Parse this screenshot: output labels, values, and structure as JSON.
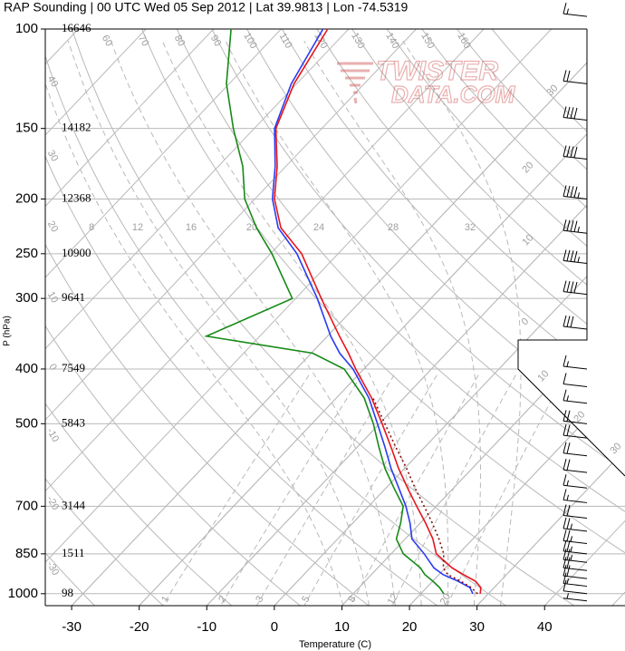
{
  "chart_data": {
    "type": "skewt",
    "title": "RAP Sounding | 00 UTC Wed 05 Sep 2012 | Lat 39.9813 | Lon -74.5319",
    "x_label": "Temperature (C)",
    "y_label": "P (hPa)",
    "log_y": true,
    "grid": true,
    "xlim": [
      -33.9,
      51.9
    ],
    "ylim": [
      100,
      1050
    ],
    "xticks": [
      -30,
      -20,
      -10,
      0,
      10,
      20,
      30,
      40
    ],
    "yticks": [
      100,
      150,
      200,
      250,
      300,
      400,
      500,
      700,
      850,
      1000
    ],
    "heights": [
      16646,
      14182,
      12368,
      10900,
      9641,
      7549,
      5843,
      3144,
      1511,
      98
    ],
    "pressure": [
      1000,
      975,
      950,
      925,
      900,
      850,
      800,
      750,
      700,
      650,
      600,
      550,
      500,
      450,
      400,
      375,
      350,
      300,
      250,
      225,
      200,
      175,
      150,
      125,
      100
    ],
    "series": [
      {
        "color": "#e8141c",
        "style": "solid",
        "values": [
          28.8,
          28.0,
          26.3,
          23.6,
          21.0,
          16.7,
          14.1,
          10.8,
          7.1,
          3.2,
          -0.9,
          -5.0,
          -9.6,
          -14.8,
          -21.2,
          -24.5,
          -28.2,
          -36.2,
          -45.4,
          -52.1,
          -57.1,
          -61.3,
          -66.8,
          -70.4,
          -73.1
        ]
      },
      {
        "color": "#2a3cf0",
        "style": "solid",
        "values": [
          27.7,
          26.4,
          23.7,
          20.6,
          18.3,
          14.9,
          11.0,
          8.5,
          5.5,
          1.9,
          -2.0,
          -5.9,
          -10.3,
          -15.2,
          -21.6,
          -25.8,
          -29.5,
          -36.8,
          -46.1,
          -52.5,
          -57.4,
          -61.6,
          -67.0,
          -70.8,
          -73.8
        ]
      },
      {
        "color": "#168a16",
        "style": "solid",
        "values": [
          23.4,
          21.9,
          20.0,
          17.9,
          16.3,
          11.8,
          8.7,
          7.1,
          5.1,
          1.2,
          -2.9,
          -6.8,
          -10.9,
          -15.9,
          -22.9,
          -29.8,
          -47.9,
          -40.5,
          -49.8,
          -55.7,
          -61.5,
          -66.4,
          -73.1,
          -80.4,
          -87.4
        ]
      },
      {
        "color": "#8b0a0a",
        "style": "dotted",
        "values": [
          28.4,
          26.6,
          24.1,
          21.3,
          19.7,
          17.8,
          15.0,
          11.8,
          8.2,
          4.3,
          0.3,
          -4.3,
          -9.2,
          -14.6,
          null,
          null,
          null,
          null,
          null,
          null,
          null,
          null,
          null,
          null,
          null
        ]
      }
    ],
    "isotherm_labels": [
      {
        "value": -30,
        "label": "30"
      },
      {
        "value": -20,
        "label": "20"
      },
      {
        "value": -10,
        "label": "10"
      },
      0,
      {
        "value": 10,
        "label": "10"
      },
      {
        "value": 20,
        "label": "20"
      },
      {
        "value": 30,
        "label": "30"
      }
    ],
    "dry_adiabats_left": [
      -30,
      -20,
      -10,
      0,
      10,
      20,
      30,
      40
    ],
    "dry_adiabats_top": [
      60,
      70,
      80,
      90,
      100,
      110,
      120,
      130,
      140,
      150,
      160
    ],
    "moist_adiabats": [
      8,
      12,
      16,
      20,
      24,
      28,
      32
    ],
    "mixing_ratios": [
      1,
      2,
      3,
      5,
      8,
      12,
      20
    ],
    "watermark": [
      "TWISTER",
      "DATA.COM"
    ],
    "wind": {
      "pressure": [
        95,
        125,
        145,
        170,
        200,
        230,
        260,
        295,
        340,
        400,
        430,
        460,
        500,
        530,
        570,
        610,
        650,
        690,
        735,
        775,
        815,
        850,
        880,
        910,
        940,
        970,
        1000,
        1030
      ],
      "speed": [
        15,
        20,
        40,
        40,
        45,
        45,
        45,
        40,
        30,
        15,
        10,
        15,
        20,
        20,
        20,
        20,
        15,
        15,
        20,
        25,
        25,
        25,
        25,
        20,
        20,
        15,
        10,
        5
      ]
    }
  }
}
